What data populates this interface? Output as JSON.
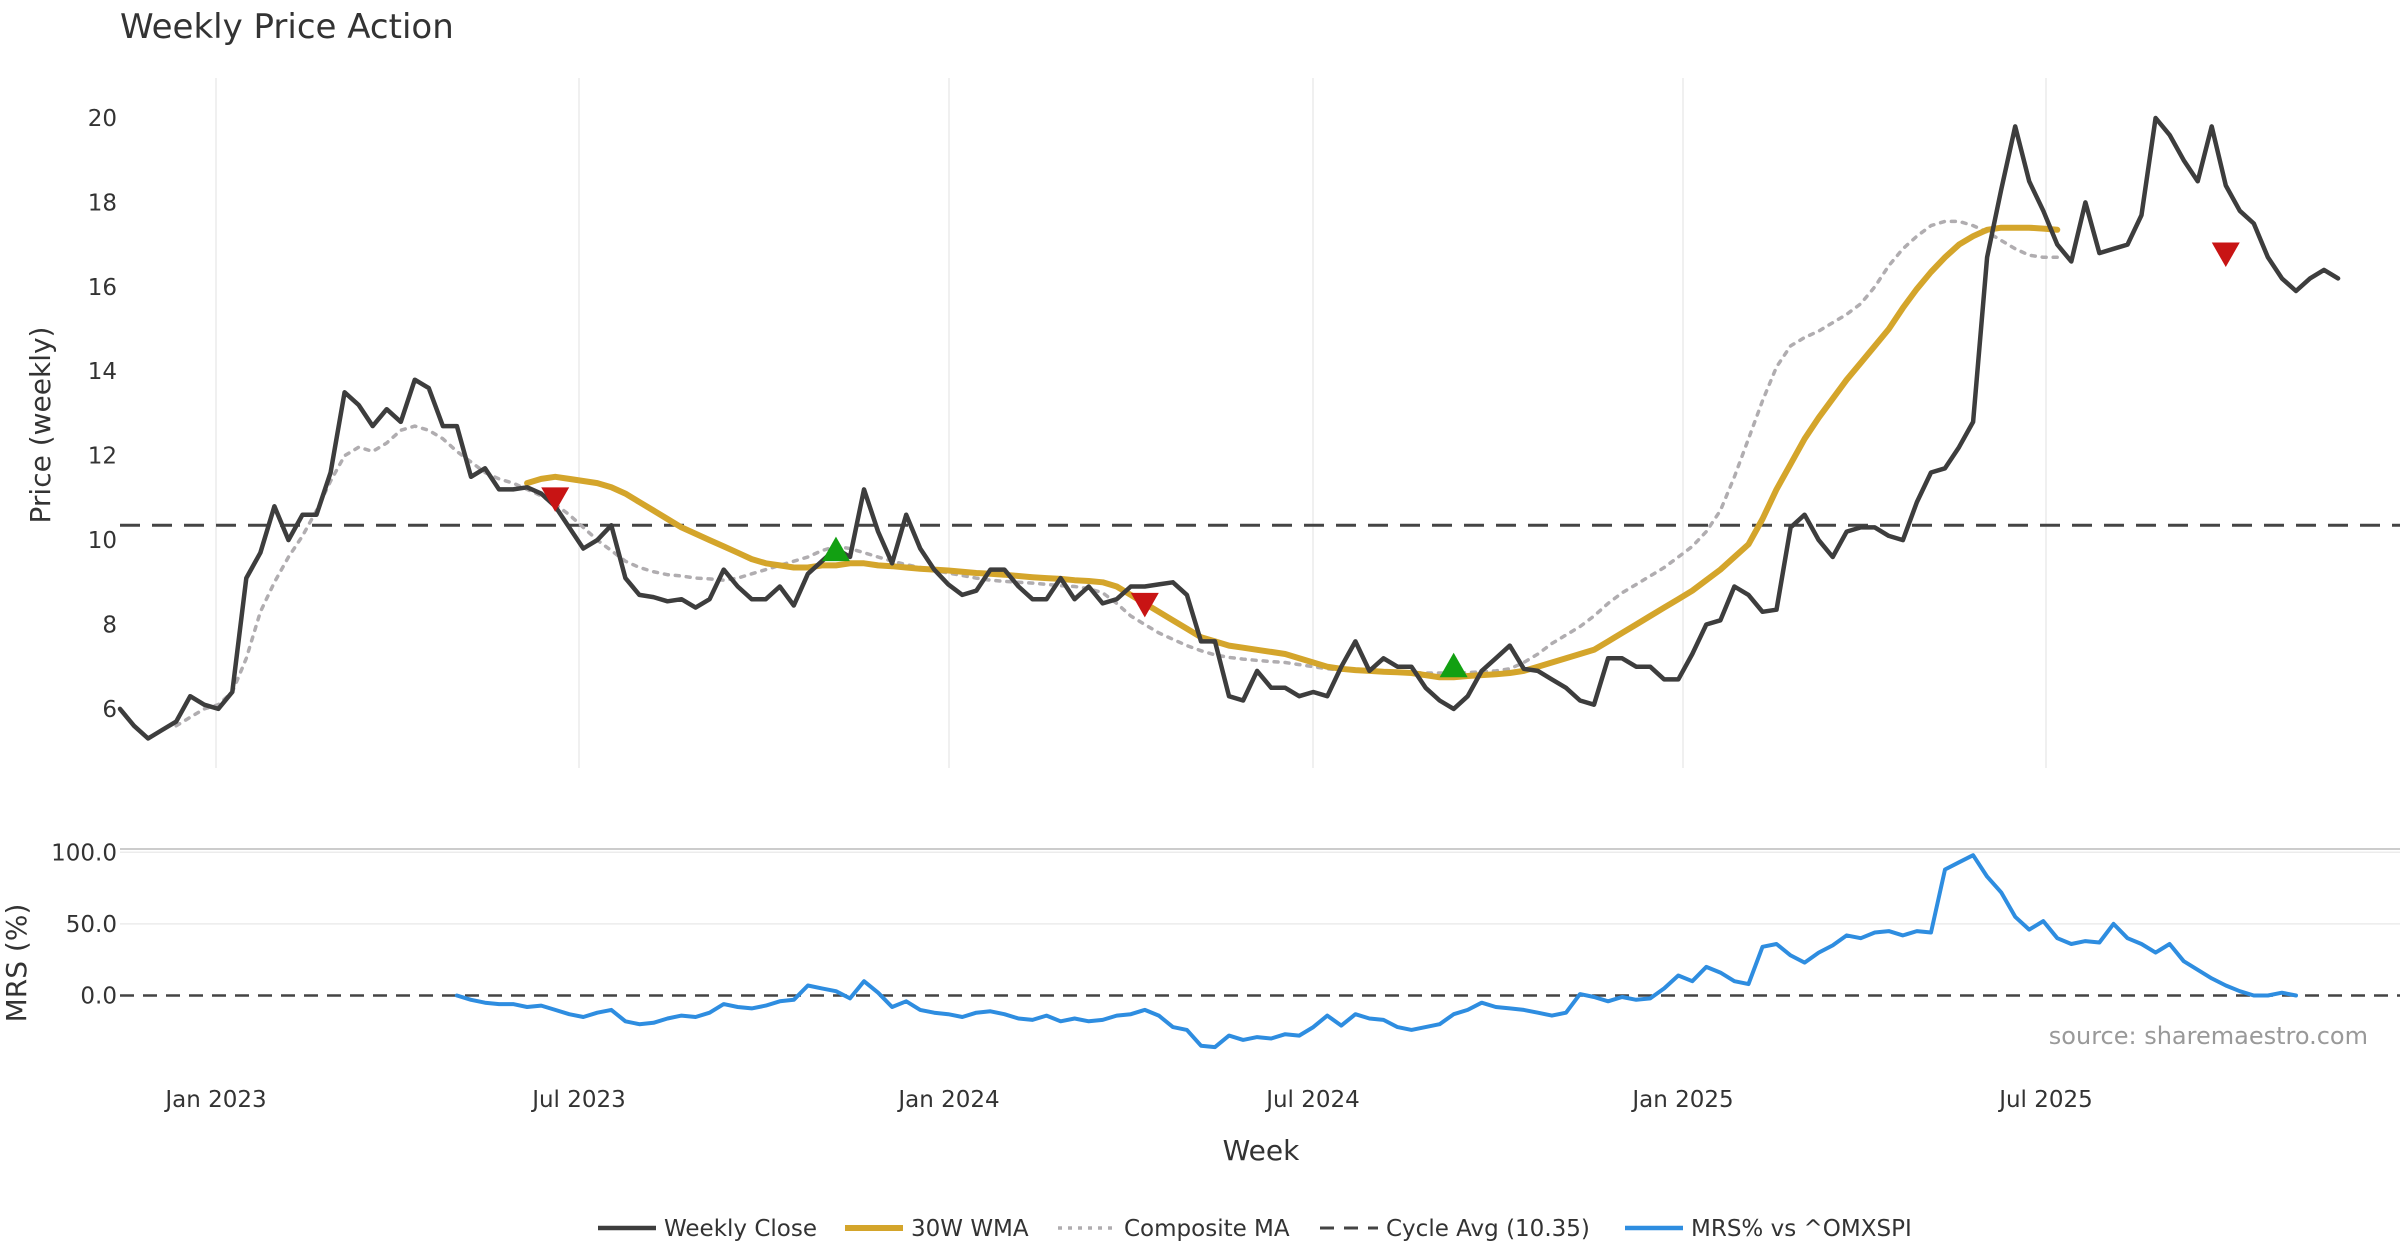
{
  "chart_data": {
    "type": "line",
    "title": "Weekly Price Action",
    "xlabel": "Week",
    "ylabel": "Price (weekly)",
    "ylabel2": "MRS (%)",
    "source": "source: sharemaestro.com",
    "ylim": [
      4.6,
      20.9
    ],
    "ylim2": [
      -45,
      103
    ],
    "xlim_weeks": [
      0,
      156
    ],
    "x_ticks": [
      "Jan 2023",
      "Jul 2023",
      "Jan 2024",
      "Jul 2024",
      "Jan 2025",
      "Jul 2025"
    ],
    "y_ticks": [
      "6",
      "8",
      "10",
      "12",
      "14",
      "16",
      "18",
      "20"
    ],
    "y2_ticks": [
      "100.0",
      "50.0",
      "0.0"
    ],
    "colors": {
      "close": "#3d3d3d",
      "wma": "#d4a52b",
      "composite": "#b0adb0",
      "cycle": "#444444",
      "mrs": "#2e8de0",
      "buy": "#12a012",
      "sell": "#c81414"
    },
    "cycle_avg": 10.35,
    "series": [
      {
        "name": "Weekly Close",
        "start_week": 0,
        "values": [
          6.0,
          5.6,
          5.3,
          5.5,
          5.7,
          6.3,
          6.1,
          6.0,
          6.4,
          9.1,
          9.7,
          10.8,
          10.0,
          10.6,
          10.6,
          11.6,
          13.5,
          13.2,
          12.7,
          13.1,
          12.8,
          13.8,
          13.6,
          12.7,
          12.7,
          11.5,
          11.7,
          11.2,
          11.2,
          11.25,
          11.1,
          10.8,
          10.3,
          9.8,
          10.0,
          10.35,
          9.1,
          8.7,
          8.65,
          8.55,
          8.6,
          8.4,
          8.6,
          9.3,
          8.9,
          8.6,
          8.6,
          8.9,
          8.45,
          9.2,
          9.5,
          9.8,
          9.6,
          11.2,
          10.2,
          9.45,
          10.6,
          9.8,
          9.3,
          8.95,
          8.7,
          8.8,
          9.3,
          9.3,
          8.9,
          8.6,
          8.6,
          9.1,
          8.6,
          8.9,
          8.5,
          8.6,
          8.9,
          8.9,
          8.95,
          9.0,
          8.7,
          7.6,
          7.6,
          6.3,
          6.2,
          6.9,
          6.5,
          6.5,
          6.3,
          6.4,
          6.3,
          7.0,
          7.6,
          6.9,
          7.2,
          7.0,
          7.0,
          6.5,
          6.2,
          6.0,
          6.3,
          6.9,
          7.2,
          7.5,
          6.95,
          6.9,
          6.7,
          6.5,
          6.2,
          6.1,
          7.2,
          7.2,
          7.0,
          7.0,
          6.7,
          6.7,
          7.3,
          8.0,
          8.1,
          8.9,
          8.7,
          8.3,
          8.35,
          10.3,
          10.6,
          10.0,
          9.6,
          10.2,
          10.3,
          10.3,
          10.1,
          10.0,
          10.9,
          11.6,
          11.7,
          12.2,
          12.8,
          16.7,
          18.3,
          19.8,
          18.5,
          17.8,
          17.0,
          16.6,
          18.0,
          16.8,
          16.9,
          17.0,
          17.7,
          20.0,
          19.6,
          19.0,
          18.5,
          19.8,
          18.4,
          17.8,
          17.5,
          16.7,
          16.2,
          15.9,
          16.2,
          16.4,
          16.2
        ]
      },
      {
        "name": "30W WMA",
        "start_week": 29,
        "values": [
          11.35,
          11.45,
          11.5,
          11.45,
          11.4,
          11.35,
          11.25,
          11.1,
          10.9,
          10.7,
          10.5,
          10.3,
          10.15,
          10.0,
          9.85,
          9.7,
          9.55,
          9.45,
          9.4,
          9.35,
          9.35,
          9.4,
          9.4,
          9.45,
          9.45,
          9.4,
          9.38,
          9.35,
          9.32,
          9.3,
          9.28,
          9.25,
          9.22,
          9.2,
          9.18,
          9.15,
          9.12,
          9.1,
          9.08,
          9.05,
          9.03,
          9.0,
          8.9,
          8.7,
          8.5,
          8.3,
          8.1,
          7.9,
          7.7,
          7.6,
          7.5,
          7.45,
          7.4,
          7.35,
          7.3,
          7.2,
          7.1,
          7.0,
          6.95,
          6.92,
          6.9,
          6.88,
          6.87,
          6.85,
          6.8,
          6.75,
          6.75,
          6.78,
          6.8,
          6.82,
          6.85,
          6.9,
          7.0,
          7.1,
          7.2,
          7.3,
          7.4,
          7.6,
          7.8,
          8.0,
          8.2,
          8.4,
          8.6,
          8.8,
          9.05,
          9.3,
          9.6,
          9.9,
          10.5,
          11.2,
          11.8,
          12.4,
          12.9,
          13.35,
          13.8,
          14.2,
          14.6,
          15.0,
          15.5,
          15.95,
          16.35,
          16.7,
          17.0,
          17.2,
          17.35,
          17.4,
          17.4,
          17.4,
          17.38,
          17.35
        ]
      },
      {
        "name": "Composite MA",
        "start_week": 4,
        "values": [
          5.6,
          5.8,
          6.0,
          6.1,
          6.4,
          7.2,
          8.3,
          9.0,
          9.6,
          10.1,
          10.7,
          11.4,
          12.0,
          12.2,
          12.1,
          12.3,
          12.6,
          12.7,
          12.6,
          12.4,
          12.1,
          11.85,
          11.6,
          11.45,
          11.35,
          11.2,
          11.05,
          10.85,
          10.6,
          10.3,
          10.0,
          9.75,
          9.5,
          9.35,
          9.25,
          9.18,
          9.15,
          9.1,
          9.08,
          9.05,
          9.1,
          9.2,
          9.3,
          9.4,
          9.5,
          9.6,
          9.75,
          9.85,
          9.8,
          9.7,
          9.6,
          9.5,
          9.42,
          9.35,
          9.28,
          9.22,
          9.16,
          9.1,
          9.05,
          9.02,
          9.0,
          8.98,
          8.95,
          8.92,
          8.9,
          8.85,
          8.75,
          8.5,
          8.2,
          8.0,
          7.8,
          7.65,
          7.5,
          7.38,
          7.28,
          7.22,
          7.18,
          7.15,
          7.12,
          7.1,
          7.05,
          7.0,
          6.95,
          6.92,
          6.9,
          6.9,
          6.88,
          6.87,
          6.86,
          6.85,
          6.85,
          6.85,
          6.86,
          6.88,
          6.9,
          6.95,
          7.1,
          7.3,
          7.55,
          7.75,
          7.95,
          8.2,
          8.5,
          8.75,
          8.95,
          9.15,
          9.35,
          9.6,
          9.85,
          10.2,
          10.7,
          11.5,
          12.4,
          13.3,
          14.1,
          14.6,
          14.8,
          14.95,
          15.15,
          15.35,
          15.6,
          16.0,
          16.5,
          16.9,
          17.2,
          17.45,
          17.55,
          17.55,
          17.45,
          17.3,
          17.1,
          16.9,
          16.75,
          16.7,
          16.7
        ]
      },
      {
        "name": "MRS% vs ^OMXSPI",
        "start_week": 24,
        "values": [
          0,
          -3,
          -5,
          -6,
          -6,
          -8,
          -7,
          -10,
          -13,
          -15,
          -12,
          -10,
          -18,
          -20,
          -19,
          -16,
          -14,
          -15,
          -12,
          -6,
          -8,
          -9,
          -7,
          -4,
          -3,
          7,
          5,
          3,
          -2,
          10,
          2,
          -8,
          -4,
          -10,
          -12,
          -13,
          -15,
          -12,
          -11,
          -13,
          -16,
          -17,
          -14,
          -18,
          -16,
          -18,
          -17,
          -14,
          -13,
          -10,
          -14,
          -22,
          -24,
          -35,
          -36,
          -28,
          -31,
          -29,
          -30,
          -27,
          -28,
          -22,
          -14,
          -21,
          -13,
          -16,
          -17,
          -22,
          -24,
          -22,
          -20,
          -13,
          -10,
          -5,
          -8,
          -9,
          -10,
          -12,
          -14,
          -12,
          1,
          -1,
          -4,
          -1,
          -3,
          -2,
          5,
          14,
          10,
          20,
          16,
          10,
          8,
          34,
          36,
          28,
          23,
          30,
          35,
          42,
          40,
          44,
          45,
          42,
          45,
          44,
          88,
          93,
          98,
          83,
          72,
          55,
          46,
          52,
          40,
          36,
          38,
          37,
          50,
          40,
          36,
          30,
          36,
          24,
          18,
          12,
          7,
          3,
          0,
          0,
          2,
          0
        ]
      }
    ],
    "markers": [
      {
        "kind": "sell",
        "week": 31,
        "value": 11.0
      },
      {
        "kind": "buy",
        "week": 51,
        "value": 9.75
      },
      {
        "kind": "sell",
        "week": 73,
        "value": 8.5
      },
      {
        "kind": "buy",
        "week": 95,
        "value": 7.0
      },
      {
        "kind": "sell",
        "week": 150,
        "value": 16.8
      }
    ],
    "legend": [
      {
        "label": "Weekly Close",
        "style": "close"
      },
      {
        "label": "30W WMA",
        "style": "wma"
      },
      {
        "label": "Composite MA",
        "style": "composite"
      },
      {
        "label": "Cycle Avg (10.35)",
        "style": "cycle"
      },
      {
        "label": "MRS% vs ^OMXSPI",
        "style": "mrs"
      }
    ]
  }
}
